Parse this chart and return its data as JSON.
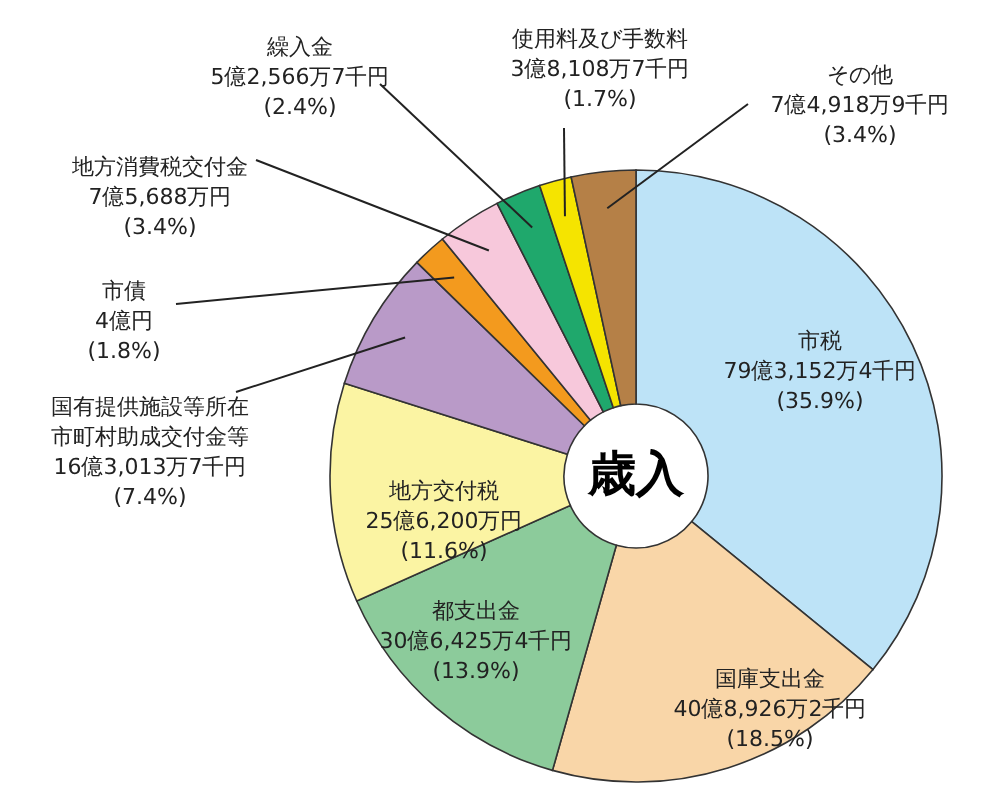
{
  "chart_data": {
    "type": "donut",
    "title": "歳入",
    "categories": [
      "市税",
      "国庫支出金",
      "都支出金",
      "地方交付税",
      "国有提供施設等所在市町村助成交付金等",
      "市債",
      "地方消費税交付金",
      "繰入金",
      "使用料及び手数料",
      "その他"
    ],
    "values": [
      35.9,
      18.5,
      13.9,
      11.6,
      7.4,
      1.8,
      3.4,
      2.4,
      1.7,
      3.4
    ],
    "colors": [
      "#bde3f7",
      "#f9d6a8",
      "#8ccb9b",
      "#fbf4a3",
      "#b99ac8",
      "#f39a1e",
      "#f7c8db",
      "#1fa86c",
      "#f5e400",
      "#b58047"
    ],
    "value_labels": [
      "79億3,152万4千円\n(35.9%)",
      "40億8,926万2千円\n(18.5%)",
      "30億6,425万4千円\n(13.9%)",
      "25億6,200万円\n(11.6%)",
      "16億3,013万7千円\n(7.4%)",
      "4億円\n(1.8%)",
      "7億5,688万円\n(3.4%)",
      "5億2,566万7千円\n(2.4%)",
      "3億8,108万7千円\n(1.7%)",
      "7億4,918万9千円\n(3.4%)"
    ]
  }
}
